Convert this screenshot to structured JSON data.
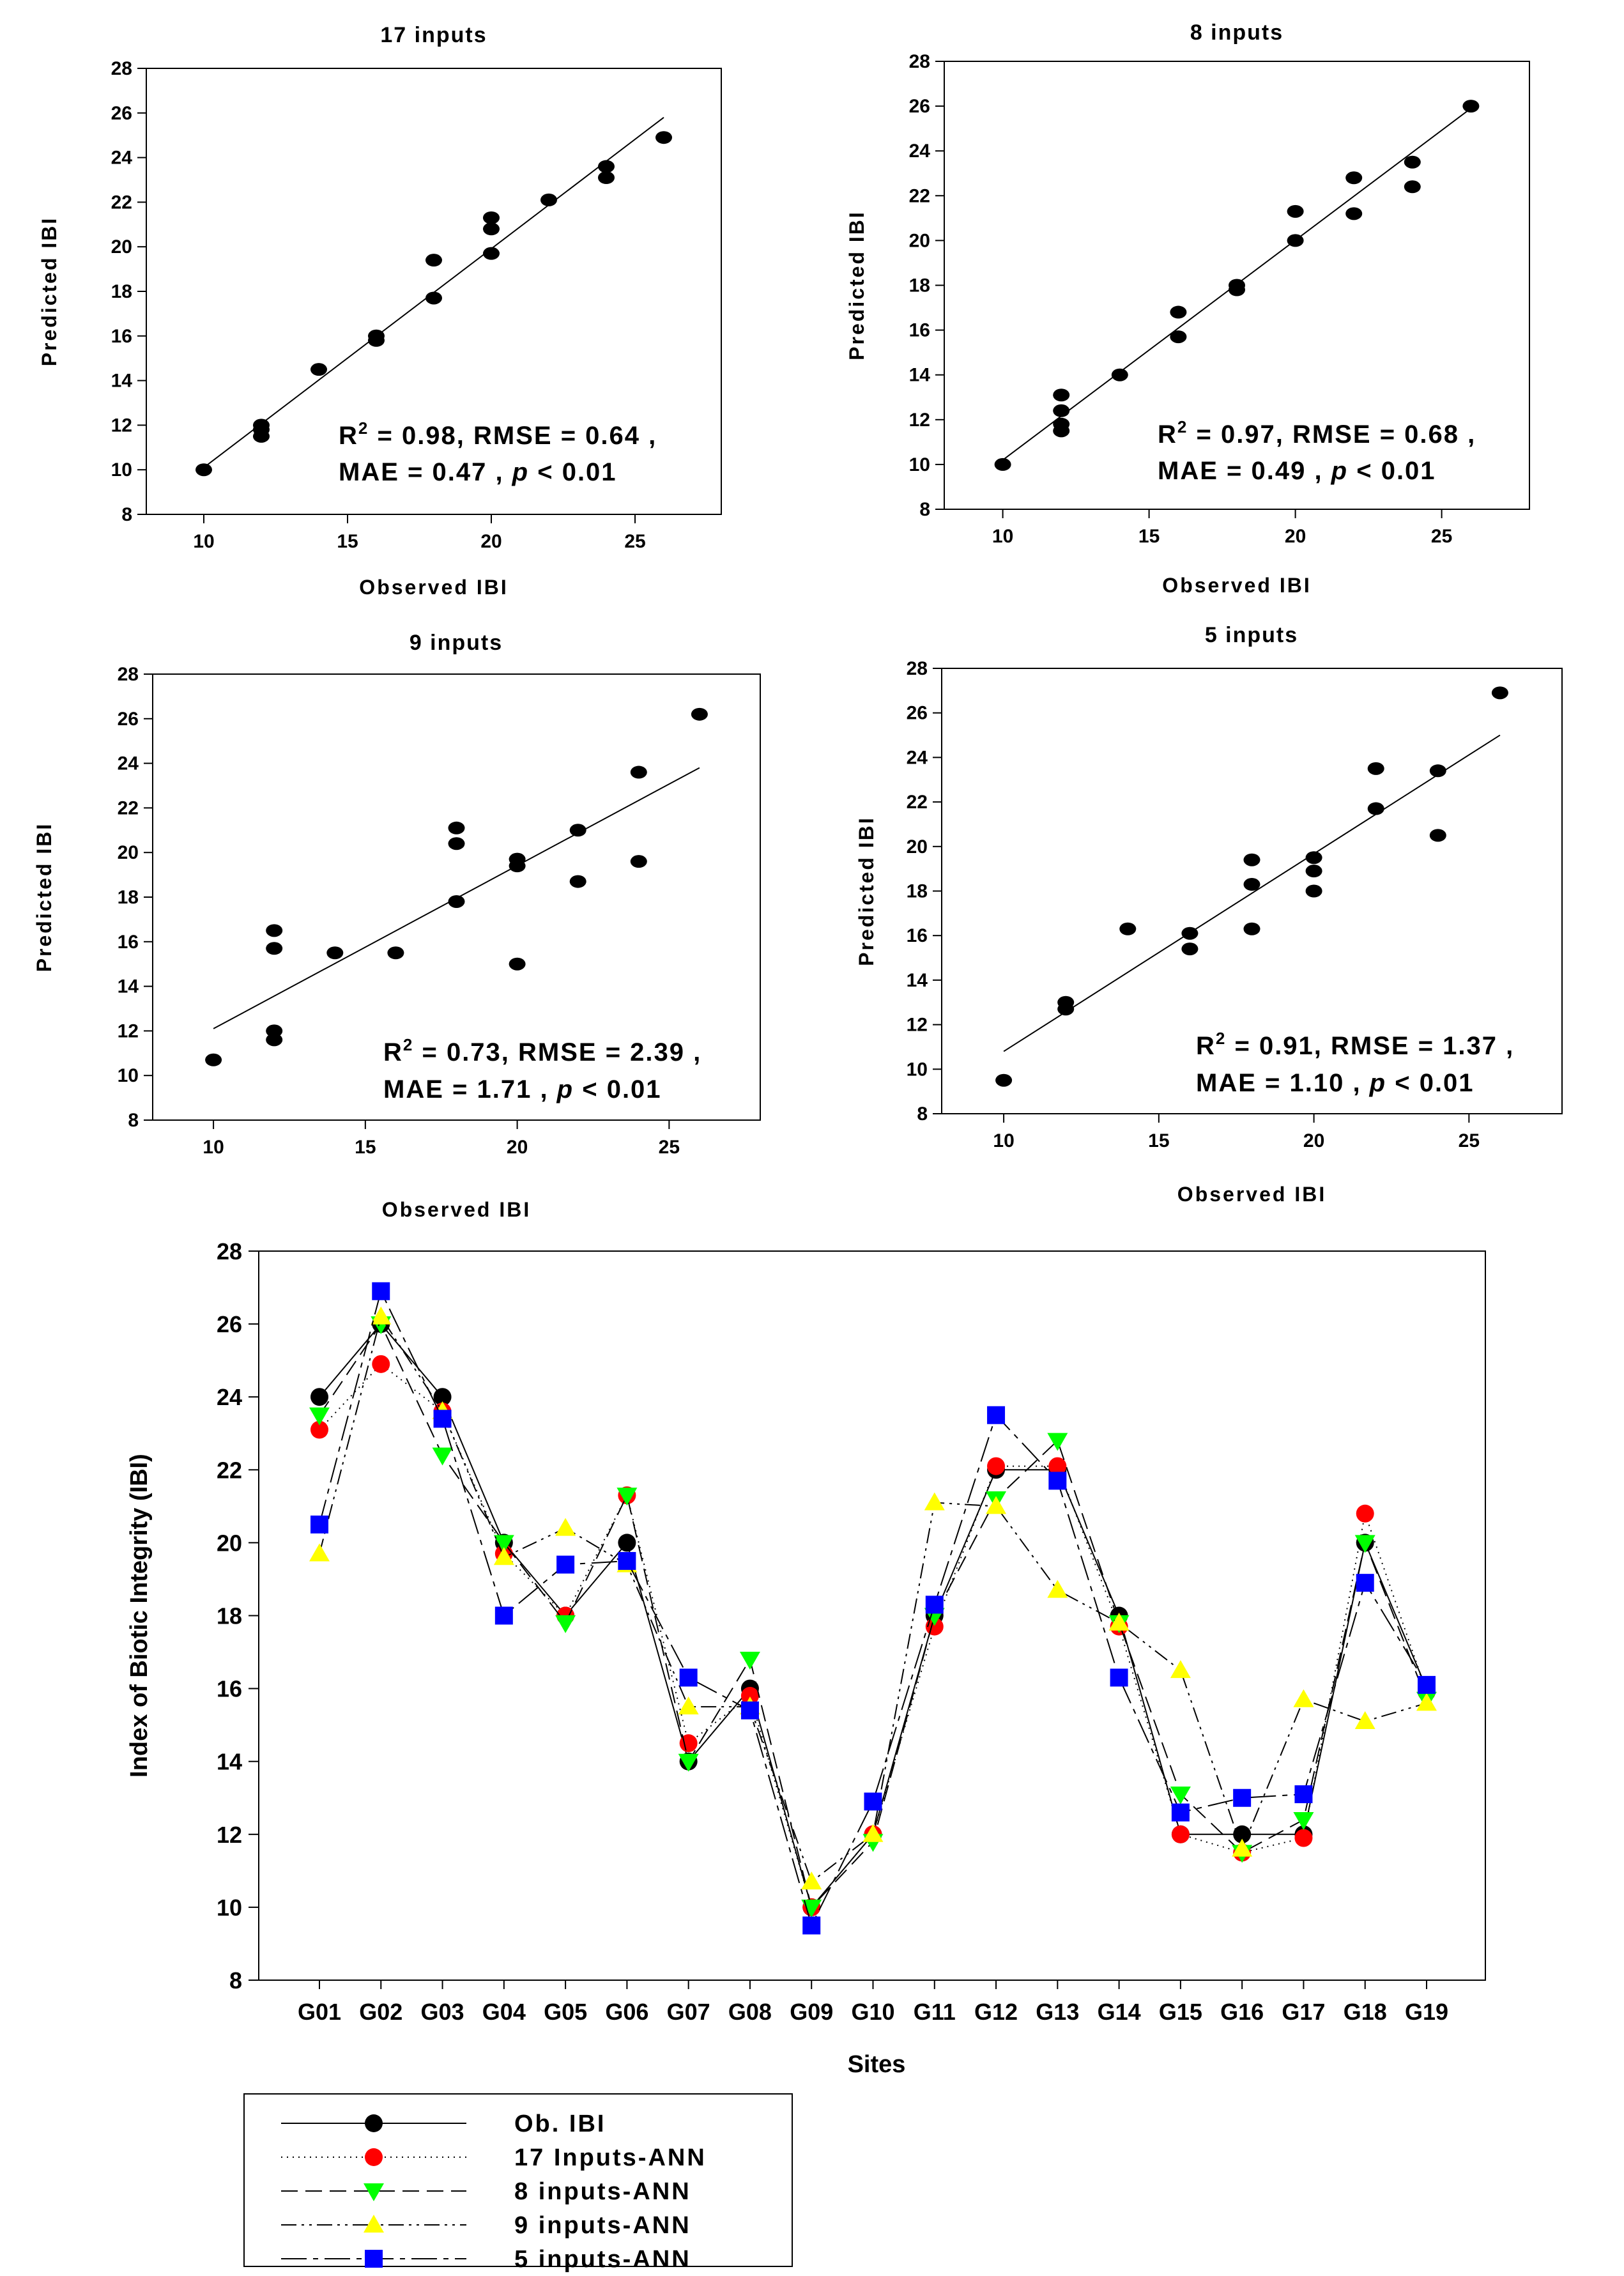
{
  "chart_data": [
    {
      "type": "scatter",
      "title": "17 inputs",
      "xlabel": "Observed IBI",
      "ylabel": "Predicted IBI",
      "xlim": [
        8,
        28
      ],
      "ylim": [
        8,
        28
      ],
      "xticks": [
        10,
        15,
        20,
        25
      ],
      "yticks": [
        8,
        10,
        12,
        14,
        16,
        18,
        20,
        22,
        24,
        26,
        28
      ],
      "stats_line1": "= 0.98, RMSE = 0.64 ,",
      "stats_line2": "MAE = 0.47 , ",
      "p_label": "p",
      "p_value": " < 0.01",
      "r2_label": "R",
      "r2_sup": "2",
      "x": [
        10,
        12,
        12,
        12,
        14,
        16,
        16,
        18,
        18,
        20,
        20,
        20,
        22,
        24,
        24,
        26
      ],
      "y": [
        10.0,
        12.0,
        11.5,
        11.8,
        14.5,
        15.8,
        16.0,
        19.4,
        17.7,
        21.3,
        20.8,
        19.7,
        22.1,
        23.6,
        23.1,
        24.9
      ],
      "fit": {
        "x": [
          10,
          26
        ],
        "y": [
          10.1,
          25.8
        ]
      }
    },
    {
      "type": "scatter",
      "title": "8 inputs",
      "xlabel": "Observed IBI",
      "ylabel": "Predicted IBI",
      "xlim": [
        8,
        28
      ],
      "ylim": [
        8,
        28
      ],
      "xticks": [
        10,
        15,
        20,
        25
      ],
      "yticks": [
        8,
        10,
        12,
        14,
        16,
        18,
        20,
        22,
        24,
        26,
        28
      ],
      "stats_line1": "= 0.97, RMSE = 0.68 ,",
      "stats_line2": "MAE = 0.49 , ",
      "p_label": "p",
      "p_value": " < 0.01",
      "r2_label": "R",
      "r2_sup": "2",
      "x": [
        10,
        12,
        12,
        12,
        12,
        14,
        16,
        16,
        18,
        18,
        20,
        20,
        22,
        22,
        24,
        24,
        26
      ],
      "y": [
        10.0,
        13.1,
        12.4,
        11.8,
        11.5,
        14.0,
        16.8,
        15.7,
        18.0,
        17.8,
        21.3,
        20.0,
        22.8,
        21.2,
        23.5,
        22.4,
        26.0
      ],
      "fit": {
        "x": [
          10,
          26
        ],
        "y": [
          10.2,
          25.9
        ]
      }
    },
    {
      "type": "scatter",
      "title": "9 inputs",
      "xlabel": "Observed IBI",
      "ylabel": "Predicted IBI",
      "xlim": [
        8,
        28
      ],
      "ylim": [
        8,
        28
      ],
      "xticks": [
        10,
        15,
        20,
        25
      ],
      "yticks": [
        8,
        10,
        12,
        14,
        16,
        18,
        20,
        22,
        24,
        26,
        28
      ],
      "stats_line1": "= 0.73, RMSE = 2.39 ,",
      "stats_line2": "MAE = 1.71 , ",
      "p_label": "p",
      "p_value": " < 0.01",
      "r2_label": "R",
      "r2_sup": "2",
      "x": [
        10,
        12,
        12,
        12,
        12,
        14,
        16,
        18,
        18,
        18,
        20,
        20,
        20,
        22,
        22,
        24,
        24,
        26
      ],
      "y": [
        10.7,
        16.5,
        15.7,
        12.0,
        11.6,
        15.5,
        15.5,
        21.1,
        20.4,
        17.8,
        19.7,
        19.4,
        15.0,
        21.0,
        18.7,
        23.6,
        19.6,
        26.2
      ],
      "fit": {
        "x": [
          10,
          26
        ],
        "y": [
          12.1,
          23.8
        ]
      }
    },
    {
      "type": "scatter",
      "title": "5 inputs",
      "xlabel": "Observed IBI",
      "ylabel": "Predicted IBI",
      "xlim": [
        8,
        28
      ],
      "ylim": [
        8,
        28
      ],
      "xticks": [
        10,
        15,
        20,
        25
      ],
      "yticks": [
        8,
        10,
        12,
        14,
        16,
        18,
        20,
        22,
        24,
        26,
        28
      ],
      "stats_line1": "= 0.91, RMSE = 1.37 ,",
      "stats_line2": "MAE = 1.10 , ",
      "p_label": "p",
      "p_value": " < 0.01",
      "r2_label": "R",
      "r2_sup": "2",
      "x": [
        10,
        12,
        12,
        14,
        16,
        16,
        18,
        18,
        18,
        20,
        20,
        20,
        22,
        22,
        24,
        24,
        26
      ],
      "y": [
        9.5,
        13.0,
        12.7,
        16.3,
        16.1,
        15.4,
        19.4,
        18.3,
        16.3,
        19.5,
        18.9,
        18.0,
        23.5,
        21.7,
        23.4,
        20.5,
        26.9
      ],
      "fit": {
        "x": [
          10,
          26
        ],
        "y": [
          10.8,
          25.0
        ]
      }
    },
    {
      "type": "line",
      "xlabel": "Sites",
      "ylabel": "Index of Biotic Integrity (IBI)",
      "ylim": [
        8,
        28
      ],
      "yticks": [
        8,
        10,
        12,
        14,
        16,
        18,
        20,
        22,
        24,
        26,
        28
      ],
      "categories": [
        "G01",
        "G02",
        "G03",
        "G04",
        "G05",
        "G06",
        "G07",
        "G08",
        "G09",
        "G10",
        "G11",
        "G12",
        "G13",
        "G14",
        "G15",
        "G16",
        "G17",
        "G18",
        "G19"
      ],
      "series": [
        {
          "name": "Ob. IBI",
          "marker": "circle",
          "color": "#000000",
          "dash": "",
          "values": [
            24,
            26,
            24,
            20,
            18,
            20,
            14,
            16,
            10,
            12,
            18,
            22,
            22,
            18,
            12,
            12,
            12,
            20,
            16
          ]
        },
        {
          "name": "17 Inputs-ANN",
          "marker": "circle",
          "color": "#ff0000",
          "dash": "2,7",
          "values": [
            23.1,
            24.9,
            23.6,
            19.7,
            18.0,
            21.3,
            14.5,
            15.8,
            10.0,
            12.0,
            17.7,
            22.1,
            22.1,
            17.7,
            12.0,
            11.5,
            11.9,
            20.8,
            15.9
          ]
        },
        {
          "name": "8 inputs-ANN",
          "marker": "triangle-down",
          "color": "#00ff00",
          "dash": "26,12",
          "values": [
            23.5,
            26.0,
            22.4,
            20.0,
            17.8,
            21.3,
            14.0,
            16.8,
            10.0,
            11.8,
            18.0,
            21.2,
            22.8,
            17.8,
            13.1,
            11.5,
            12.4,
            20.0,
            15.7
          ]
        },
        {
          "name": "9 inputs-ANN",
          "marker": "triangle-up",
          "color": "#ffff00",
          "dash": "24,8,4,8,4,8",
          "values": [
            19.7,
            26.2,
            23.6,
            19.6,
            20.4,
            19.4,
            15.5,
            15.5,
            10.7,
            12.0,
            21.1,
            21.0,
            18.7,
            17.8,
            16.5,
            11.6,
            15.7,
            15.1,
            15.6
          ]
        },
        {
          "name": "5 inputs-ANN",
          "marker": "square",
          "color": "#0000ff",
          "dash": "40,10,8,10",
          "values": [
            20.5,
            26.9,
            23.4,
            18.0,
            19.4,
            19.5,
            16.3,
            15.4,
            9.5,
            12.9,
            18.3,
            23.5,
            21.7,
            16.3,
            12.6,
            13.0,
            13.1,
            18.9,
            16.1
          ]
        }
      ]
    }
  ]
}
